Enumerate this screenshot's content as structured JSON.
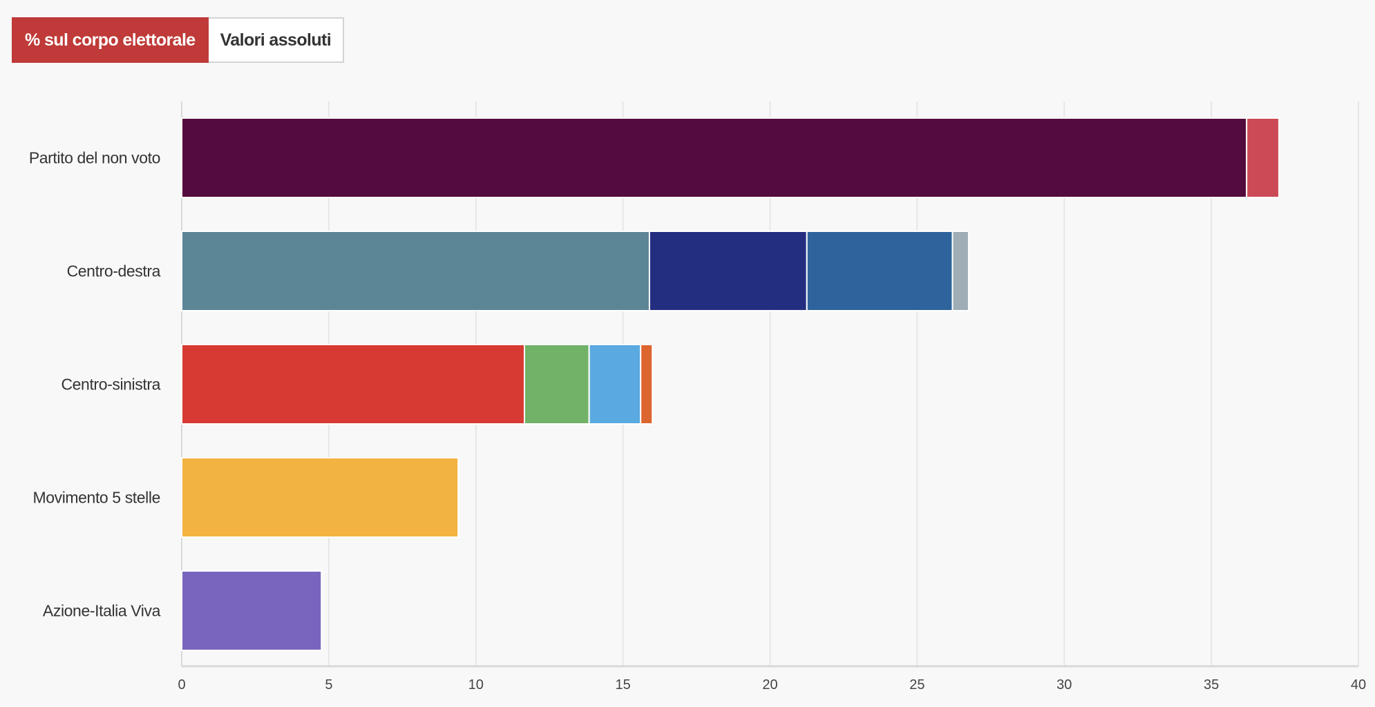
{
  "toggle": {
    "percent_label": "% sul corpo elettorale",
    "absolute_label": "Valori assoluti"
  },
  "chart_data": {
    "type": "bar",
    "orientation": "horizontal",
    "stacked": true,
    "title": "",
    "xlabel": "",
    "ylabel": "",
    "xlim": [
      0,
      40
    ],
    "xticks": [
      "0",
      "5",
      "10",
      "15",
      "20",
      "25",
      "30",
      "35",
      "40"
    ],
    "grid": true,
    "categories": [
      "Partito del non voto",
      "Centro-destra",
      "Centro-sinistra",
      "Movimento 5 stelle",
      "Azione-Italia Viva"
    ],
    "stacks": [
      {
        "segments": [
          {
            "value": 36.2,
            "color": "#540c3e"
          },
          {
            "value": 1.1,
            "color": "#cc4a56"
          }
        ]
      },
      {
        "segments": [
          {
            "value": 15.9,
            "color": "#5c8595"
          },
          {
            "value": 5.35,
            "color": "#242e80"
          },
          {
            "value": 4.95,
            "color": "#2e639c"
          },
          {
            "value": 0.55,
            "color": "#9eadb6"
          }
        ]
      },
      {
        "segments": [
          {
            "value": 11.65,
            "color": "#d63a33"
          },
          {
            "value": 2.2,
            "color": "#71b268"
          },
          {
            "value": 1.75,
            "color": "#5aa9e0"
          },
          {
            "value": 0.4,
            "color": "#dd6530"
          }
        ]
      },
      {
        "segments": [
          {
            "value": 9.4,
            "color": "#f3b340"
          }
        ]
      },
      {
        "segments": [
          {
            "value": 4.75,
            "color": "#7965bd"
          }
        ]
      }
    ]
  }
}
